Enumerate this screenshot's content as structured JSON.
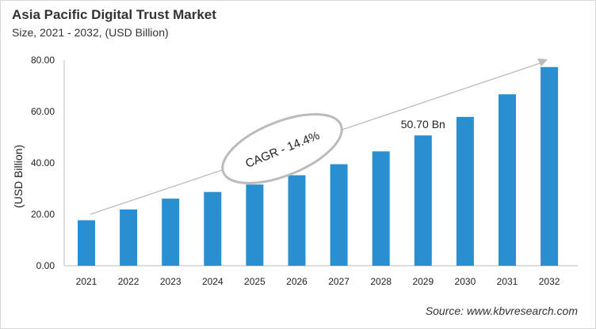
{
  "chart_data": {
    "type": "bar",
    "title": "Asia Pacific Digital Trust Market",
    "subtitle": "Size, 2021 - 2032, (USD Billion)",
    "xlabel": "",
    "ylabel": "(USD Billion)",
    "categories": [
      "2021",
      "2022",
      "2023",
      "2024",
      "2025",
      "2026",
      "2027",
      "2028",
      "2029",
      "2030",
      "2031",
      "2032"
    ],
    "values": [
      17.7,
      21.9,
      26.1,
      28.7,
      31.6,
      35.2,
      39.5,
      44.5,
      50.7,
      57.9,
      66.7,
      77.3
    ],
    "ylim": [
      0,
      80
    ],
    "yticks": [
      "0.00",
      "20.00",
      "40.00",
      "60.00",
      "80.00"
    ],
    "grid": false,
    "bar_color": "#2A8FD0",
    "annotations": {
      "cagr": "CAGR - 14.4%",
      "value_label": "50.70 Bn",
      "value_label_category": "2029"
    },
    "source": "Source: www.kbvresearch.com"
  }
}
